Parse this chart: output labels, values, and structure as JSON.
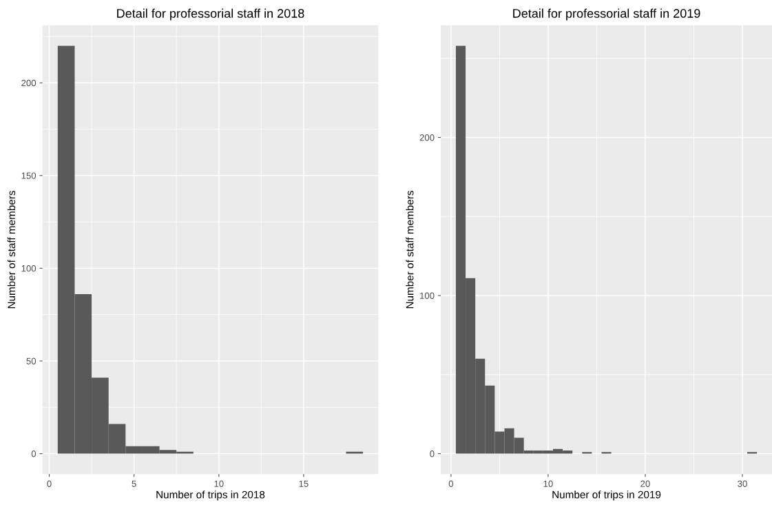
{
  "chart_data": [
    {
      "type": "histogram",
      "title": "Detail for professorial staff in 2018",
      "xlabel": "Number of trips in 2018",
      "ylabel": "Number of staff members",
      "color": "#595959",
      "bins": [
        0.5,
        1.5,
        2.5,
        3.5,
        4.5,
        5.5,
        6.5,
        7.5,
        8.5,
        9.5,
        10.5,
        11.5,
        12.5,
        13.5,
        14.5,
        15.5,
        16.5,
        17.5,
        18.5
      ],
      "values": [
        220,
        86,
        41,
        16,
        4,
        4,
        2,
        1,
        0,
        0,
        0,
        0,
        0,
        0,
        0,
        0,
        0,
        1
      ],
      "xlim": [
        -0.4,
        19.4
      ],
      "xticks": [
        0,
        5,
        10,
        15
      ],
      "ylim": [
        -11,
        231
      ],
      "yticks": [
        0,
        50,
        100,
        150,
        200
      ],
      "grid": true
    },
    {
      "type": "histogram",
      "title": "Detail for professorial staff in 2019",
      "xlabel": "Number of trips in 2019",
      "ylabel": "Number of staff members",
      "color": "#595959",
      "bins": [
        0.5,
        1.5,
        2.5,
        3.5,
        4.5,
        5.5,
        6.5,
        7.5,
        8.5,
        9.5,
        10.5,
        11.5,
        12.5,
        13.5,
        14.5,
        15.5,
        16.5,
        17.5,
        18.5,
        19.5,
        20.5,
        21.5,
        22.5,
        23.5,
        24.5,
        25.5,
        26.5,
        27.5,
        28.5,
        29.5,
        30.5,
        31.5
      ],
      "values": [
        258,
        111,
        60,
        43,
        14,
        16,
        10,
        2,
        2,
        2,
        3,
        2,
        0,
        1,
        0,
        1,
        0,
        0,
        0,
        0,
        0,
        0,
        0,
        0,
        0,
        0,
        0,
        0,
        0,
        0,
        1
      ],
      "xlim": [
        -1.05,
        33.05
      ],
      "xticks": [
        0,
        10,
        20,
        30
      ],
      "ylim": [
        -12.9,
        270.9
      ],
      "yticks": [
        0,
        100,
        200
      ],
      "grid": true
    }
  ]
}
